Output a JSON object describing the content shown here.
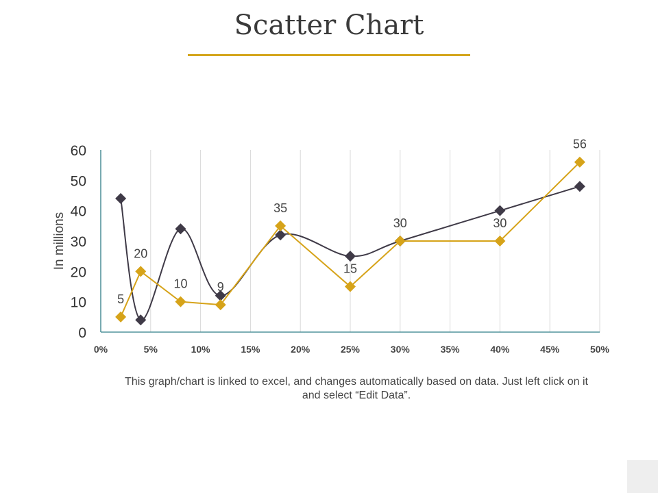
{
  "title": "Scatter Chart",
  "note": "This graph/chart is linked to excel, and changes automatically based on data. Just left click on it and select “Edit Data”.",
  "colors": {
    "accent": "#d4a51c",
    "series_gold": "#d6a319",
    "series_dark": "#3f3a47",
    "axis": "#2e7d86",
    "grid": "#d9d9d9"
  },
  "chart_data": {
    "type": "scatter",
    "title": "",
    "xlabel": "",
    "ylabel": "In millions",
    "xlim": [
      0,
      50
    ],
    "ylim": [
      0,
      60
    ],
    "x_ticks": [
      "0%",
      "5%",
      "10%",
      "15%",
      "20%",
      "25%",
      "30%",
      "35%",
      "40%",
      "45%",
      "50%"
    ],
    "y_ticks": [
      "0",
      "10",
      "20",
      "30",
      "40",
      "50",
      "60"
    ],
    "grid": "vertical",
    "series": [
      {
        "color": "#3f3a47",
        "smooth": true,
        "marker": "diamond",
        "data_labels": false,
        "x": [
          2,
          4,
          8,
          12,
          18,
          25,
          30,
          40,
          48
        ],
        "y": [
          44,
          4,
          34,
          12,
          32,
          25,
          30,
          40,
          48
        ]
      },
      {
        "color": "#d6a319",
        "smooth": false,
        "marker": "diamond",
        "data_labels": true,
        "x": [
          2,
          4,
          8,
          12,
          18,
          25,
          30,
          40,
          48
        ],
        "y": [
          5,
          20,
          10,
          9,
          35,
          15,
          30,
          30,
          56
        ]
      }
    ]
  }
}
